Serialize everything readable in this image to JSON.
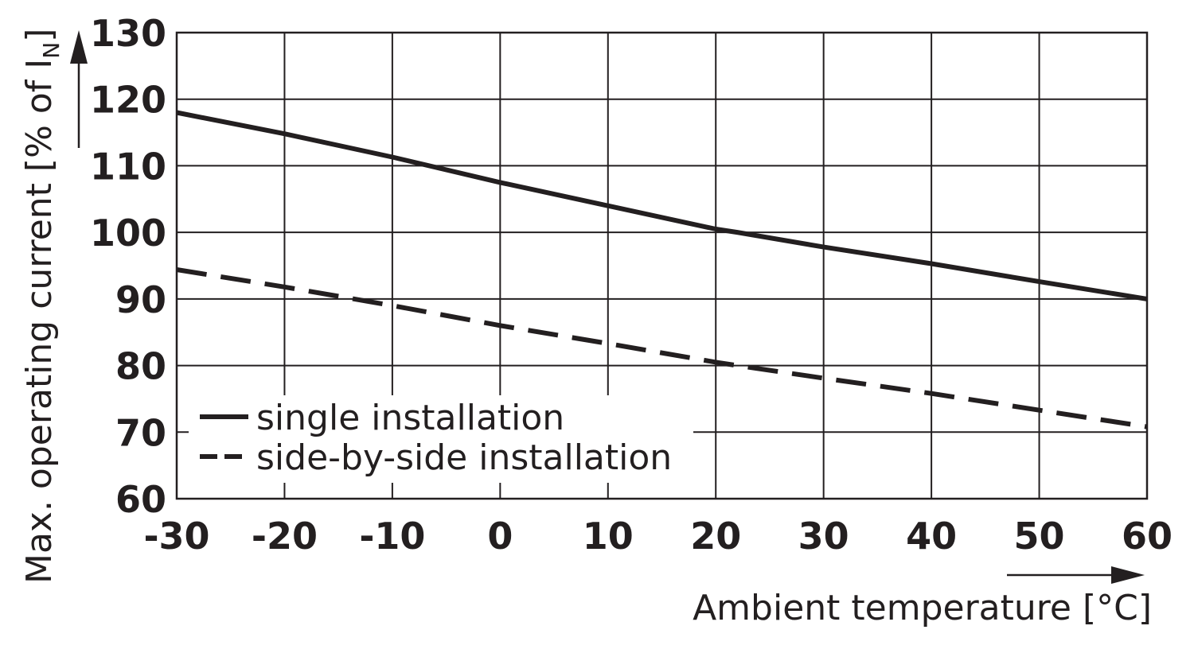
{
  "chart_data": {
    "type": "line",
    "xlabel": "Ambient temperature [°C]",
    "ylabel": "Max. operating current [% of I",
    "ylabel_subscript": "N",
    "ylabel_close": "]",
    "xlim": [
      -30,
      60
    ],
    "ylim": [
      60,
      130
    ],
    "xticks": [
      -30,
      -20,
      -10,
      0,
      10,
      20,
      30,
      40,
      50,
      60
    ],
    "yticks": [
      60,
      70,
      80,
      90,
      100,
      110,
      120,
      130
    ],
    "grid": true,
    "legend_position": "bottom-left",
    "series": [
      {
        "name": "single installation",
        "line_style": "solid",
        "color": "#231f20",
        "points": [
          [
            -30,
            118
          ],
          [
            -20,
            114.8
          ],
          [
            -10,
            111.3
          ],
          [
            0,
            107.5
          ],
          [
            10,
            104
          ],
          [
            20,
            100.5
          ],
          [
            22,
            100
          ],
          [
            30,
            97.8
          ],
          [
            40,
            95.3
          ],
          [
            50,
            92.6
          ],
          [
            60,
            90
          ]
        ]
      },
      {
        "name": "side-by-side installation",
        "line_style": "dashed",
        "color": "#231f20",
        "points": [
          [
            -30,
            94.4
          ],
          [
            -20,
            91.8
          ],
          [
            -10,
            89
          ],
          [
            0,
            86
          ],
          [
            10,
            83.3
          ],
          [
            20,
            80.5
          ],
          [
            22,
            80
          ],
          [
            30,
            78.1
          ],
          [
            40,
            75.8
          ],
          [
            50,
            73.3
          ],
          [
            60,
            70.8
          ]
        ]
      }
    ]
  }
}
